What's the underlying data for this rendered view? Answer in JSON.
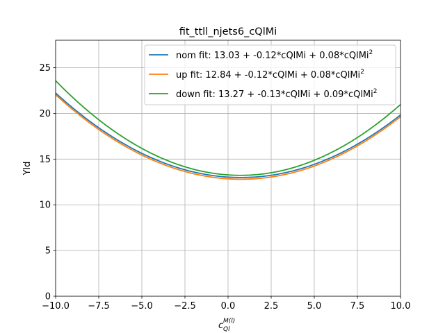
{
  "chart_data": {
    "type": "line",
    "title": "fit_ttll_njets6_cQlMi",
    "xlabel_base": "c",
    "xlabel_sub": "Ql",
    "xlabel_sup": "M(l)",
    "ylabel": "Yld",
    "xlim": [
      -10,
      10
    ],
    "ylim": [
      0,
      28
    ],
    "xticks": [
      -10,
      -7.5,
      -5,
      -2.5,
      0,
      2.5,
      5,
      7.5,
      10
    ],
    "xtick_labels": [
      "−10.0",
      "−7.5",
      "−5.0",
      "−2.5",
      "0.0",
      "2.5",
      "5.0",
      "7.5",
      "10.0"
    ],
    "yticks": [
      0,
      5,
      10,
      15,
      20,
      25
    ],
    "ytick_labels": [
      "0",
      "5",
      "10",
      "15",
      "20",
      "25"
    ],
    "grid": true,
    "legend_position": "top-right",
    "x_range": [
      -10,
      10
    ],
    "series": [
      {
        "name": "nom fit",
        "legend_text": "nom fit: 13.03 + -0.12*cQlMi + 0.08*cQlMi",
        "legend_sup": "2",
        "c0": 13.03,
        "c1": -0.12,
        "c2": 0.08,
        "color": "#1f77b4"
      },
      {
        "name": "up fit",
        "legend_text": "up fit: 12.84 + -0.12*cQlMi + 0.08*cQlMi",
        "legend_sup": "2",
        "c0": 12.84,
        "c1": -0.12,
        "c2": 0.08,
        "color": "#ff7f0e"
      },
      {
        "name": "down fit",
        "legend_text": "down fit: 13.27 + -0.13*cQlMi + 0.09*cQlMi",
        "legend_sup": "2",
        "c0": 13.27,
        "c1": -0.13,
        "c2": 0.09,
        "color": "#2ca02c"
      }
    ]
  }
}
